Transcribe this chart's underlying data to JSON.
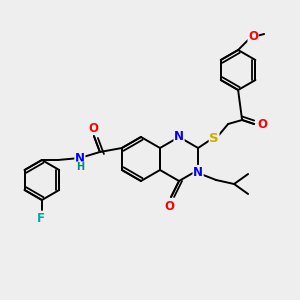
{
  "bg_color": "#eeeeee",
  "bond_color": "#000000",
  "atom_colors": {
    "O": "#ff0000",
    "N": "#0000ff",
    "S": "#ccaa00",
    "F": "#00aaaa",
    "H": "#008888",
    "C": "#000000"
  },
  "font_size_atom": 8.5,
  "font_size_small": 7,
  "figsize": [
    3.0,
    3.0
  ],
  "dpi": 100
}
